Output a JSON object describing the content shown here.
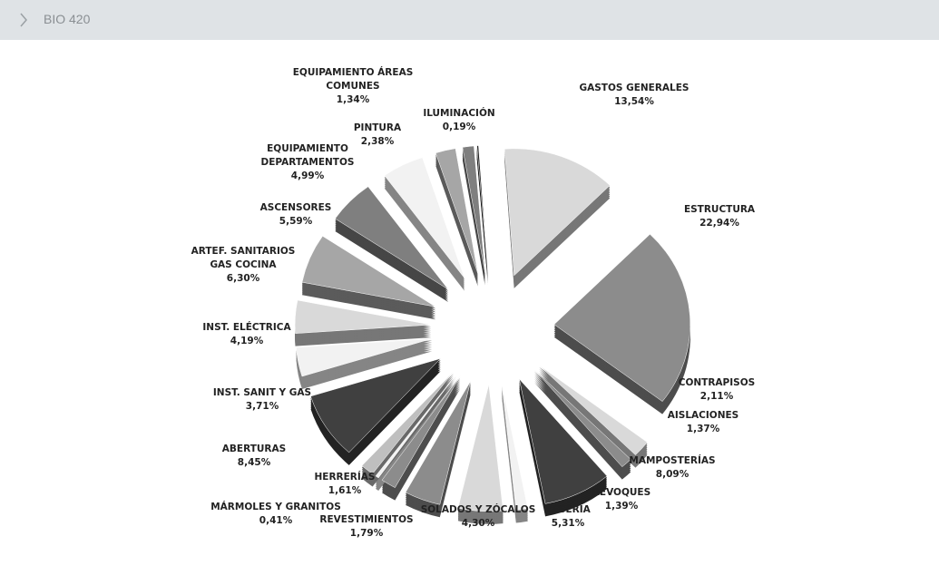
{
  "header": {
    "title": "BIO 420"
  },
  "chart_data": {
    "type": "pie",
    "categories": [
      "GASTOS GENERALES",
      "ESTRUCTURA",
      "CONTRAPISOS",
      "AISLACIONES",
      "MAMPOSTERÍAS",
      "REVOQUES",
      "YESERIA",
      "SOLADOS Y ZÓCALOS",
      "REVESTIMIENTOS",
      "MÁRMOLES Y GRANITOS",
      "HERRERÍAS",
      "ABERTURAS",
      "INST. SANIT Y GAS",
      "INST. ELÉCTRICA",
      "ARTEF. SANITARIOS GAS COCINA",
      "ASCENSORES",
      "EQUIPAMIENTO DEPARTAMENTOS",
      "PINTURA",
      "EQUIPAMIENTO ÁREAS COMUNES",
      "ILUMINACIÓN"
    ],
    "values": [
      13.54,
      22.94,
      2.11,
      1.37,
      8.09,
      1.39,
      5.31,
      4.3,
      1.79,
      0.41,
      1.61,
      8.45,
      3.71,
      4.19,
      6.3,
      5.59,
      4.99,
      2.38,
      1.34,
      0.19
    ],
    "value_labels": [
      "13,54%",
      "22,94%",
      "2,11%",
      "1,37%",
      "8,09%",
      "1,39%",
      "5,31%",
      "4,30%",
      "1,79%",
      "0,41%",
      "1,61%",
      "8,45%",
      "3,71%",
      "4,19%",
      "6,30%",
      "5,59%",
      "4,99%",
      "2,38%",
      "1,34%",
      "0,19%"
    ],
    "colors": [
      "#d9d9d9",
      "#8c8c8c",
      "#d9d9d9",
      "#8c8c8c",
      "#404040",
      "#f2f2f2",
      "#d9d9d9",
      "#8c8c8c",
      "#8c8c8c",
      "#f2f2f2",
      "#bfbfbf",
      "#404040",
      "#f2f2f2",
      "#d9d9d9",
      "#a6a6a6",
      "#7f7f7f",
      "#f2f2f2",
      "#a6a6a6",
      "#7f7f7f",
      "#262626"
    ]
  }
}
